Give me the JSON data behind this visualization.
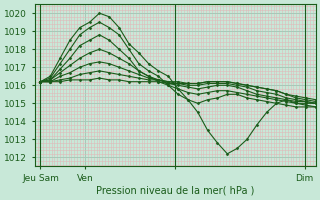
{
  "bg_color": "#c8e8d8",
  "grid_color_major": "#a8c8b8",
  "grid_color_minor": "#e0b8b8",
  "line_color": "#1a5c1a",
  "marker_color": "#1a5c1a",
  "title": "Pression niveau de la mer( hPa )",
  "yticks": [
    1012,
    1013,
    1014,
    1015,
    1016,
    1017,
    1018,
    1019,
    1020
  ],
  "ylim": [
    1011.5,
    1020.5
  ],
  "xlim": [
    0,
    100
  ],
  "xtick_positions": [
    2,
    18,
    50,
    96
  ],
  "xtick_labels": [
    "Jeu Sam",
    "Ven",
    "",
    "Dim"
  ],
  "vlines": [
    2,
    50,
    96
  ],
  "series": [
    [
      1016.2,
      1016.5,
      1017.5,
      1018.5,
      1019.2,
      1019.5,
      1020.0,
      1019.8,
      1019.2,
      1018.3,
      1017.8,
      1017.2,
      1016.8,
      1016.5,
      1015.8,
      1015.2,
      1014.5,
      1013.5,
      1012.8,
      1012.2,
      1012.5,
      1013.0,
      1013.8,
      1014.5,
      1015.0,
      1015.2,
      1015.0,
      1014.9,
      1014.8
    ],
    [
      1016.2,
      1016.4,
      1017.2,
      1018.0,
      1018.8,
      1019.2,
      1019.5,
      1019.2,
      1018.8,
      1018.0,
      1017.2,
      1016.8,
      1016.5,
      1016.0,
      1015.5,
      1015.2,
      1015.0,
      1015.2,
      1015.3,
      1015.5,
      1015.5,
      1015.3,
      1015.2,
      1015.1,
      1015.0,
      1014.9,
      1014.8,
      1014.8,
      1014.8
    ],
    [
      1016.2,
      1016.3,
      1016.9,
      1017.5,
      1018.2,
      1018.5,
      1018.8,
      1018.5,
      1018.0,
      1017.5,
      1016.8,
      1016.5,
      1016.2,
      1016.0,
      1015.8,
      1015.6,
      1015.5,
      1015.6,
      1015.7,
      1015.7,
      1015.6,
      1015.5,
      1015.4,
      1015.3,
      1015.2,
      1015.1,
      1015.0,
      1015.0,
      1015.0
    ],
    [
      1016.2,
      1016.3,
      1016.7,
      1017.1,
      1017.5,
      1017.8,
      1018.0,
      1017.8,
      1017.5,
      1017.2,
      1016.8,
      1016.5,
      1016.3,
      1016.1,
      1016.0,
      1015.9,
      1015.8,
      1015.9,
      1016.0,
      1016.0,
      1015.9,
      1015.7,
      1015.5,
      1015.4,
      1015.3,
      1015.2,
      1015.1,
      1015.1,
      1015.0
    ],
    [
      1016.2,
      1016.2,
      1016.5,
      1016.7,
      1017.0,
      1017.2,
      1017.3,
      1017.2,
      1017.0,
      1016.8,
      1016.6,
      1016.4,
      1016.3,
      1016.2,
      1016.1,
      1016.0,
      1016.0,
      1016.1,
      1016.1,
      1016.1,
      1016.0,
      1015.9,
      1015.7,
      1015.6,
      1015.5,
      1015.3,
      1015.2,
      1015.1,
      1015.0
    ],
    [
      1016.2,
      1016.2,
      1016.3,
      1016.4,
      1016.6,
      1016.7,
      1016.8,
      1016.7,
      1016.6,
      1016.5,
      1016.4,
      1016.3,
      1016.3,
      1016.2,
      1016.2,
      1016.1,
      1016.1,
      1016.2,
      1016.2,
      1016.2,
      1016.1,
      1016.0,
      1015.9,
      1015.8,
      1015.7,
      1015.5,
      1015.3,
      1015.2,
      1015.1
    ],
    [
      1016.2,
      1016.2,
      1016.2,
      1016.3,
      1016.3,
      1016.3,
      1016.4,
      1016.3,
      1016.3,
      1016.2,
      1016.2,
      1016.2,
      1016.2,
      1016.1,
      1016.1,
      1016.1,
      1016.1,
      1016.2,
      1016.2,
      1016.2,
      1016.1,
      1016.0,
      1015.9,
      1015.8,
      1015.7,
      1015.5,
      1015.4,
      1015.3,
      1015.2
    ]
  ]
}
